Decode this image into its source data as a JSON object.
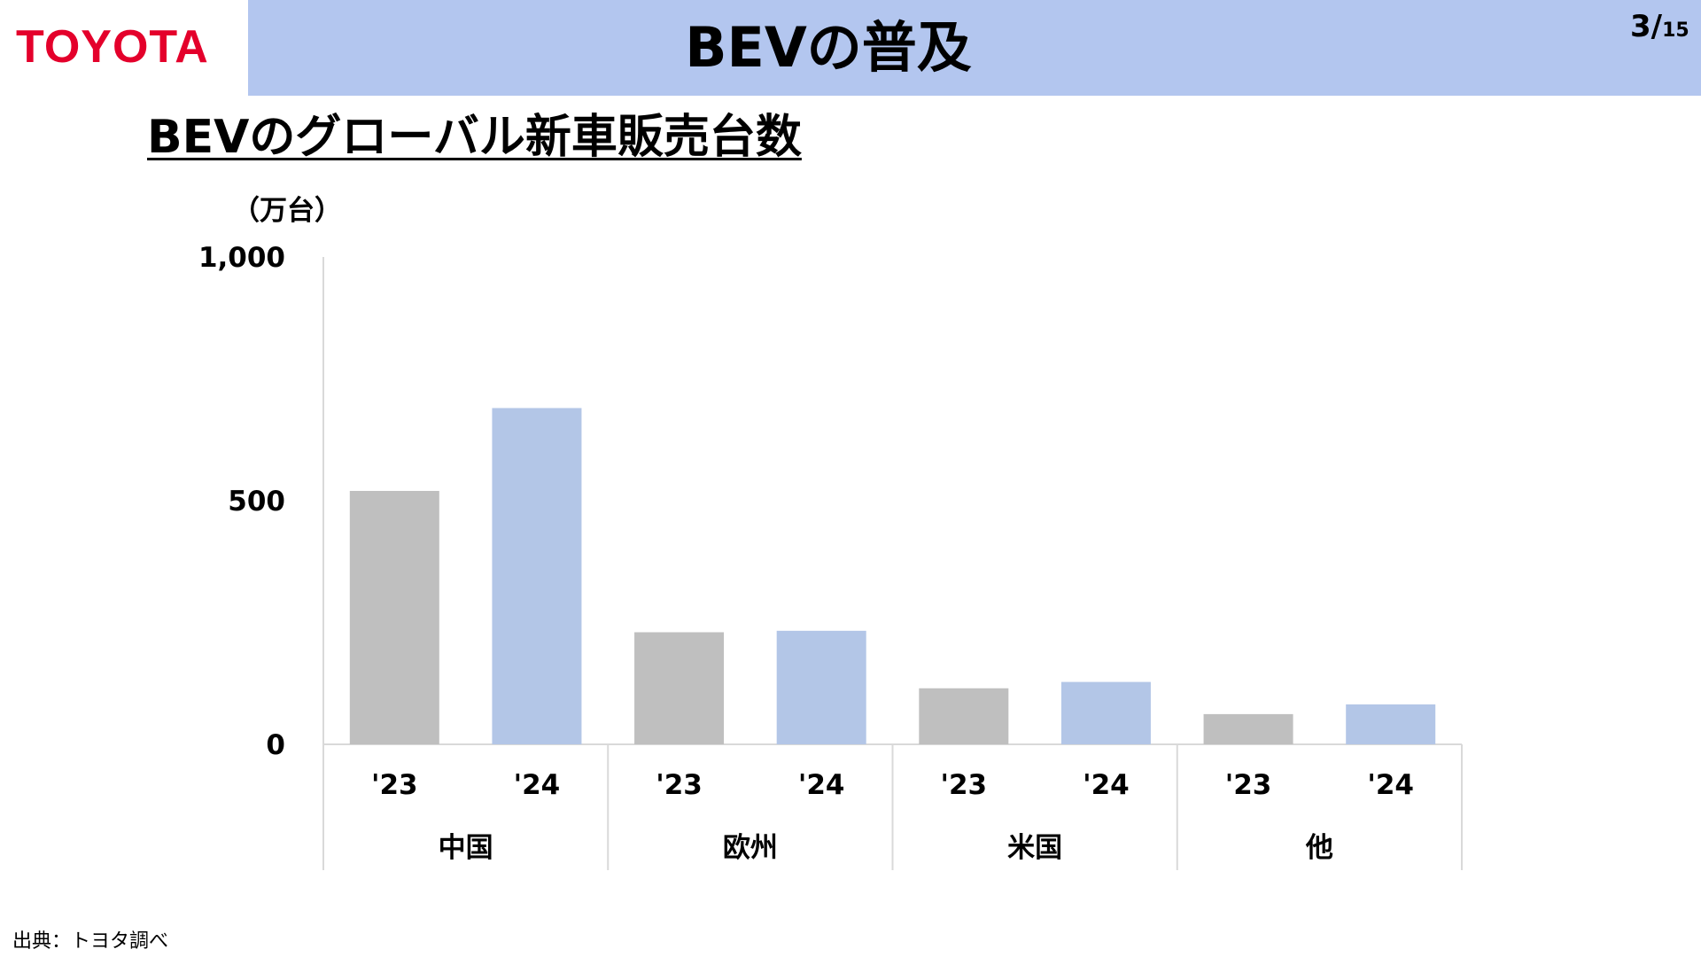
{
  "header": {
    "logo": "TOYOTA",
    "title": "BEVの普及",
    "page_current": "3",
    "page_separator": "/",
    "page_total": "15"
  },
  "subtitle": "BEVのグローバル新車販売台数",
  "footer": {
    "source": "出典：トヨタ調べ"
  },
  "colors": {
    "brand_red": "#e4002b",
    "title_band": "#b3c6ef",
    "bar_2023": "#bfbfbf",
    "bar_2024": "#b3c6e7",
    "axis": "#d9d9d9"
  },
  "chart_data": {
    "type": "bar",
    "unit_label": "（万台）",
    "ylim": [
      0,
      1000
    ],
    "yticks": [
      "0",
      "500",
      "1,000"
    ],
    "ytick_values": [
      0,
      500,
      1000
    ],
    "groups": [
      "中国",
      "欧州",
      "米国",
      "他"
    ],
    "legend": "none",
    "grid": false,
    "bars": [
      {
        "group": "中国",
        "label": "'23",
        "value": 520
      },
      {
        "group": "中国",
        "label": "'24",
        "value": 690
      },
      {
        "group": "欧州",
        "label": "'23",
        "value": 230
      },
      {
        "group": "欧州",
        "label": "'24",
        "value": 233
      },
      {
        "group": "米国",
        "label": "'23",
        "value": 115
      },
      {
        "group": "米国",
        "label": "'24",
        "value": 128
      },
      {
        "group": "他",
        "label": "'23",
        "value": 62
      },
      {
        "group": "他",
        "label": "'24",
        "value": 82
      }
    ]
  }
}
